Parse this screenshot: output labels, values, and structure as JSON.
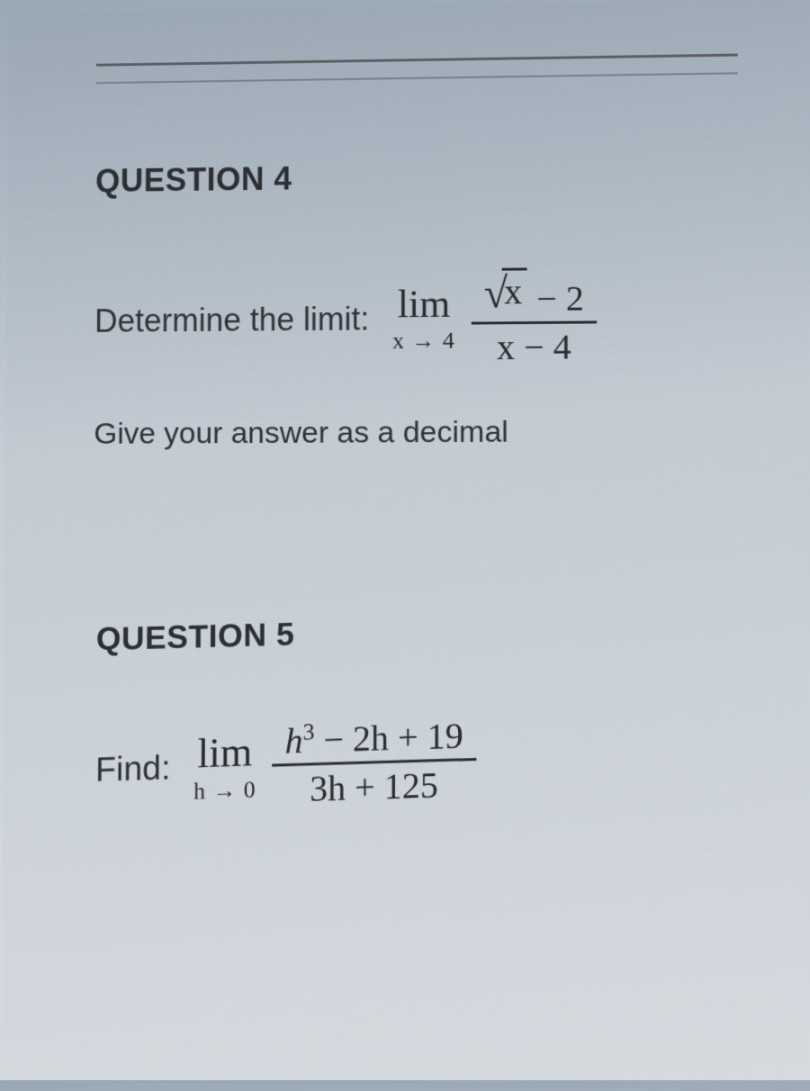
{
  "colors": {
    "text": "#2d3033",
    "rule": "#5a5f63",
    "bg_top": "#9aa8b5",
    "bg_bottom": "#d8dde2"
  },
  "question4": {
    "header": "QUESTION 4",
    "prompt": "Determine the limit:",
    "limit": {
      "word": "lim",
      "sub": "x → 4",
      "numerator_sqrt_arg": "x",
      "numerator_after": " − 2",
      "denominator": "x − 4"
    },
    "instruction": "Give your answer as a decimal"
  },
  "question5": {
    "header": "QUESTION 5",
    "prompt": "Find:",
    "limit": {
      "word": "lim",
      "sub": "h → 0",
      "numerator_h_exp": "3",
      "numerator_rest": " − 2h + 19",
      "denominator": "3h + 125"
    }
  }
}
